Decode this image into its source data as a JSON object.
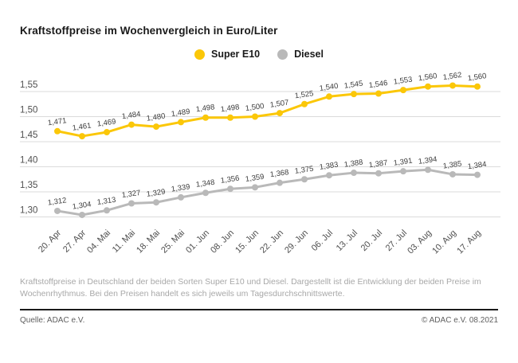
{
  "title": "Kraftstoffpreise im Wochenvergleich in Euro/Liter",
  "chart_data": {
    "type": "line",
    "categories": [
      "20. Apr",
      "27. Apr",
      "04. Mai",
      "11. Mai",
      "18. Mai",
      "25. Mai",
      "01. Jun",
      "08. Jun",
      "15. Jun",
      "22. Jun",
      "29. Jun",
      "06. Jul",
      "13. Jul",
      "20. Jul",
      "27. Jul",
      "03. Aug",
      "10. Aug",
      "17. Aug"
    ],
    "series": [
      {
        "name": "Super E10",
        "color": "#FBC708",
        "values": [
          1.471,
          1.461,
          1.469,
          1.484,
          1.48,
          1.489,
          1.498,
          1.498,
          1.5,
          1.507,
          1.525,
          1.54,
          1.545,
          1.546,
          1.553,
          1.56,
          1.562,
          1.56
        ]
      },
      {
        "name": "Diesel",
        "color": "#B9B9B9",
        "values": [
          1.312,
          1.304,
          1.313,
          1.327,
          1.329,
          1.339,
          1.348,
          1.356,
          1.359,
          1.368,
          1.375,
          1.383,
          1.388,
          1.387,
          1.391,
          1.394,
          1.385,
          1.384
        ]
      }
    ],
    "title": "Kraftstoffpreise im Wochenvergleich in Euro/Liter",
    "xlabel": "",
    "ylabel": "Euro/Liter",
    "ylim": [
      1.3,
      1.55
    ],
    "yticks": [
      1.55,
      1.5,
      1.45,
      1.4,
      1.35,
      1.3
    ],
    "grid": true,
    "legend_position": "top-center",
    "decimal_separator": ",",
    "data_labels": true
  },
  "colors": {
    "grid": "#dbdbdb",
    "axis_label": "#4f4f4f",
    "data_label": "#3c3c3c"
  },
  "description": "Kraftstoffpreise in Deutschland der beiden Sorten Super E10 und Diesel. Dargestellt ist die Entwicklung der beiden Preise im Wochenrhythmus. Bei den Preisen handelt es sich jeweils um Tagesdurchschnittswerte.",
  "footer": {
    "source": "Quelle: ADAC e.V.",
    "copyright": "© ADAC e.V. 08.2021"
  }
}
